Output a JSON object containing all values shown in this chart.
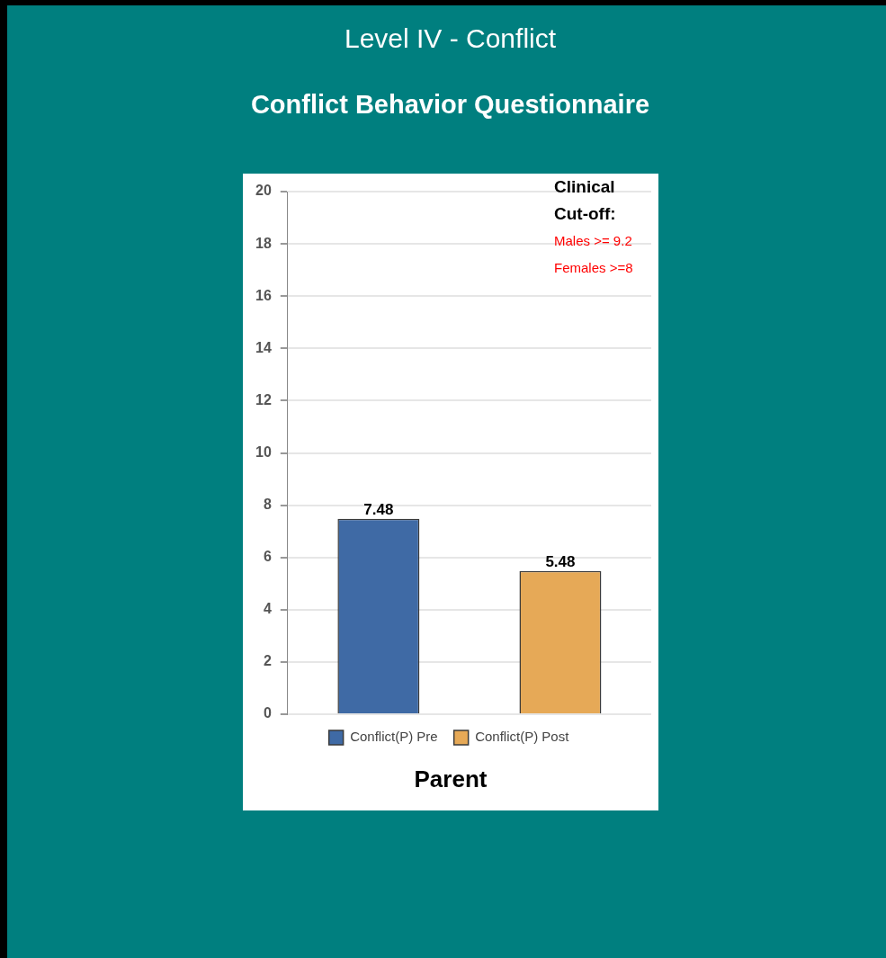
{
  "chart_data": {
    "type": "bar",
    "title": "Level IV - Conflict",
    "subtitle": "Conflict Behavior Questionnaire",
    "xlabel": "Parent",
    "categories": [
      null
    ],
    "series": [
      {
        "name": "Conflict(P) Pre",
        "color": "#3f6aa5",
        "values": [
          7.48
        ]
      },
      {
        "name": "Conflict(P) Post",
        "color": "#e6a957",
        "values": [
          5.48
        ]
      }
    ],
    "ylim": [
      0,
      20
    ],
    "yticks": [
      0,
      2,
      4,
      6,
      8,
      10,
      12,
      14,
      16,
      18,
      20
    ],
    "grid": "y",
    "legend": "bottom",
    "data_labels": true,
    "annotations": [
      "Clinical Cut-off:",
      "Males >= 9.2",
      "Females >=8"
    ]
  }
}
